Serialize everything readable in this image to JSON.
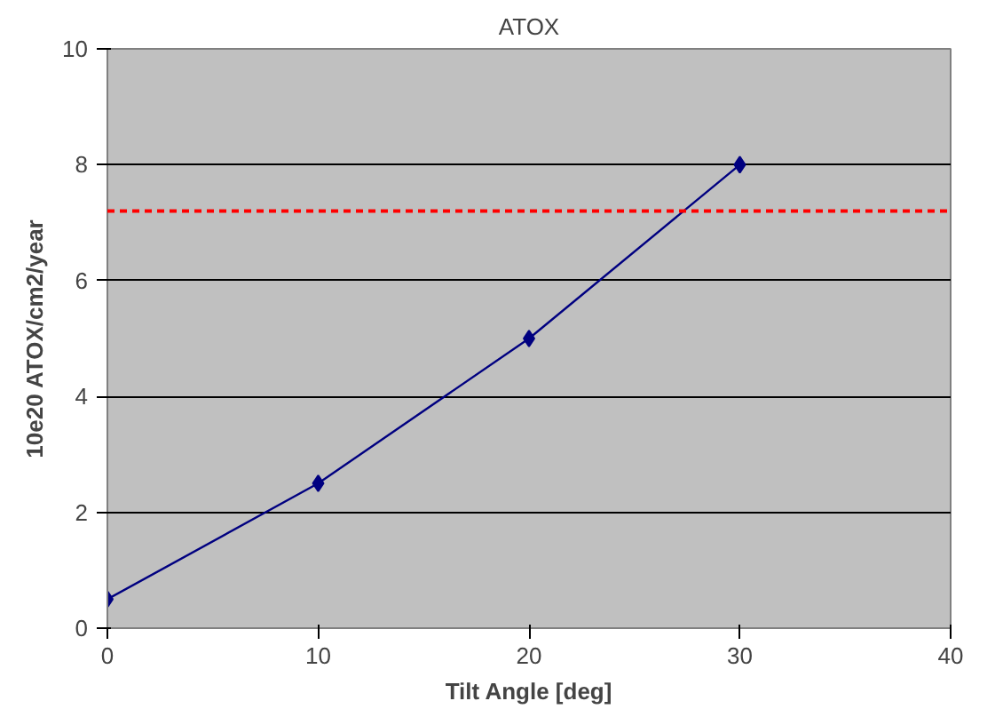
{
  "chart_data": {
    "type": "line",
    "title": "ATOX",
    "xlabel": "Tilt Angle [deg]",
    "ylabel": "10e20 ATOX/cm2/year",
    "x": [
      0,
      10,
      20,
      30
    ],
    "series": [
      {
        "color": "#000080",
        "values": [
          0.5,
          2.5,
          5,
          8
        ]
      }
    ],
    "xlim": [
      0,
      40
    ],
    "xticks": [
      0,
      10,
      20,
      30,
      40
    ],
    "ylim": [
      0,
      10
    ],
    "yticks": [
      0,
      2,
      4,
      6,
      8,
      10
    ],
    "grid": "y",
    "marker": "diamond",
    "line_style": "solid",
    "ref_lines": [
      {
        "axis": "y",
        "value": 7.2,
        "color": "#ff0000",
        "line_style": "dashed"
      }
    ]
  }
}
